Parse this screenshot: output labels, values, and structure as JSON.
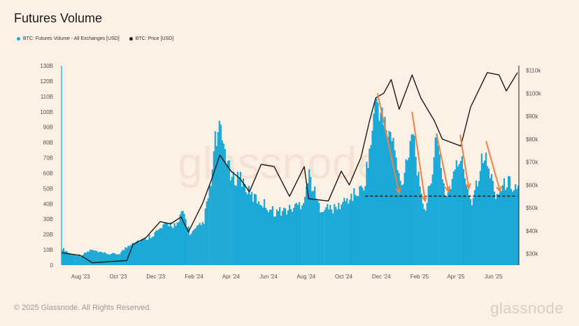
{
  "page": {
    "title": "Futures Volume",
    "footer": "© 2025 Glassnode. All Rights Reserved.",
    "brand": "glassnode",
    "watermark": "glassnode"
  },
  "colors": {
    "background": "#fdf0e4",
    "volume": "#1aa9d6",
    "price": "#1a1a1a",
    "arrow": "#e8834a",
    "support_line": "#1a1a1a"
  },
  "chart_data": {
    "type": "bar",
    "x_ticks": [
      "Aug '23",
      "Oct '23",
      "Dec '23",
      "Feb '24",
      "Apr '24",
      "Jun '24",
      "Aug '24",
      "Oct '24",
      "Dec '24",
      "Feb '25",
      "Apr '25",
      "Jun '25"
    ],
    "y_left_ticks": [
      "0",
      "10B",
      "20B",
      "30B",
      "40B",
      "50B",
      "60B",
      "70B",
      "80B",
      "90B",
      "100B",
      "110B",
      "120B",
      "130B"
    ],
    "y_right_ticks": [
      "$30k",
      "$40k",
      "$50k",
      "$60k",
      "$70k",
      "$80k",
      "$90k",
      "$100k",
      "$110k"
    ],
    "ylim_left": [
      0,
      130
    ],
    "ylim_right": [
      25,
      112
    ],
    "x_range": [
      "2023-07-01",
      "2025-07-10"
    ],
    "legend_position": "top-left",
    "series": [
      {
        "name": "BTC: Futures Volume - All Exchanges [USD]",
        "kind": "bar",
        "unit": "B USD",
        "points": [
          [
            "2023-07-01",
            12
          ],
          [
            "2023-07-15",
            8
          ],
          [
            "2023-08-01",
            7
          ],
          [
            "2023-08-17",
            11
          ],
          [
            "2023-08-30",
            9
          ],
          [
            "2023-09-15",
            8
          ],
          [
            "2023-10-01",
            8
          ],
          [
            "2023-10-24",
            17
          ],
          [
            "2023-11-10",
            18
          ],
          [
            "2023-12-05",
            25
          ],
          [
            "2023-12-20",
            30
          ],
          [
            "2024-01-05",
            28
          ],
          [
            "2024-01-12",
            40
          ],
          [
            "2024-01-25",
            22
          ],
          [
            "2024-02-15",
            30
          ],
          [
            "2024-02-28",
            60
          ],
          [
            "2024-03-05",
            88
          ],
          [
            "2024-03-12",
            95
          ],
          [
            "2024-03-20",
            85
          ],
          [
            "2024-04-01",
            60
          ],
          [
            "2024-04-13",
            65
          ],
          [
            "2024-05-01",
            50
          ],
          [
            "2024-05-20",
            45
          ],
          [
            "2024-06-10",
            38
          ],
          [
            "2024-07-05",
            40
          ],
          [
            "2024-07-25",
            45
          ],
          [
            "2024-08-05",
            65
          ],
          [
            "2024-08-20",
            42
          ],
          [
            "2024-09-15",
            40
          ],
          [
            "2024-10-15",
            50
          ],
          [
            "2024-11-01",
            55
          ],
          [
            "2024-11-12",
            85
          ],
          [
            "2024-11-22",
            120
          ],
          [
            "2024-12-05",
            100
          ],
          [
            "2024-12-18",
            90
          ],
          [
            "2025-01-01",
            55
          ],
          [
            "2025-01-20",
            100
          ],
          [
            "2025-02-01",
            50
          ],
          [
            "2025-02-10",
            40
          ],
          [
            "2025-02-28",
            90
          ],
          [
            "2025-03-15",
            48
          ],
          [
            "2025-04-07",
            78
          ],
          [
            "2025-04-25",
            45
          ],
          [
            "2025-05-15",
            80
          ],
          [
            "2025-06-05",
            50
          ],
          [
            "2025-06-22",
            60
          ],
          [
            "2025-07-10",
            55
          ]
        ]
      },
      {
        "name": "BTC: Price [USD]",
        "kind": "line",
        "unit": "k USD",
        "points": [
          [
            "2023-07-01",
            30.4
          ],
          [
            "2023-08-01",
            29.2
          ],
          [
            "2023-08-20",
            26
          ],
          [
            "2023-09-15",
            26.5
          ],
          [
            "2023-10-15",
            27
          ],
          [
            "2023-10-25",
            34
          ],
          [
            "2023-11-15",
            37
          ],
          [
            "2023-12-08",
            44
          ],
          [
            "2023-12-25",
            43
          ],
          [
            "2024-01-11",
            46
          ],
          [
            "2024-01-23",
            39.5
          ],
          [
            "2024-02-15",
            52
          ],
          [
            "2024-02-29",
            62
          ],
          [
            "2024-03-14",
            73
          ],
          [
            "2024-04-01",
            66
          ],
          [
            "2024-04-15",
            63
          ],
          [
            "2024-05-01",
            57
          ],
          [
            "2024-05-20",
            69
          ],
          [
            "2024-06-10",
            68
          ],
          [
            "2024-07-05",
            55
          ],
          [
            "2024-07-29",
            68
          ],
          [
            "2024-08-05",
            54
          ],
          [
            "2024-09-06",
            53
          ],
          [
            "2024-09-27",
            66
          ],
          [
            "2024-10-10",
            60
          ],
          [
            "2024-10-29",
            72
          ],
          [
            "2024-11-12",
            88
          ],
          [
            "2024-11-22",
            98
          ],
          [
            "2024-12-05",
            100
          ],
          [
            "2024-12-17",
            106
          ],
          [
            "2024-12-30",
            93
          ],
          [
            "2025-01-20",
            108
          ],
          [
            "2025-02-03",
            98
          ],
          [
            "2025-02-25",
            88
          ],
          [
            "2025-03-10",
            80
          ],
          [
            "2025-04-09",
            77
          ],
          [
            "2025-04-25",
            94
          ],
          [
            "2025-05-22",
            109
          ],
          [
            "2025-06-10",
            108
          ],
          [
            "2025-06-22",
            101
          ],
          [
            "2025-07-10",
            109
          ]
        ]
      }
    ],
    "reference_line": {
      "value": 45,
      "axis": "left",
      "start": "2024-11-05",
      "end": "2025-07-10",
      "style": "dashed"
    },
    "arrows": [
      {
        "from": [
          "2024-11-25",
          112
        ],
        "to": [
          "2024-12-30",
          47
        ]
      },
      {
        "from": [
          "2025-01-20",
          100
        ],
        "to": [
          "2025-02-10",
          42
        ]
      },
      {
        "from": [
          "2025-03-01",
          85
        ],
        "to": [
          "2025-03-20",
          48
        ]
      },
      {
        "from": [
          "2025-04-08",
          85
        ],
        "to": [
          "2025-04-22",
          50
        ]
      },
      {
        "from": [
          "2025-05-20",
          81
        ],
        "to": [
          "2025-06-12",
          48
        ]
      }
    ]
  }
}
